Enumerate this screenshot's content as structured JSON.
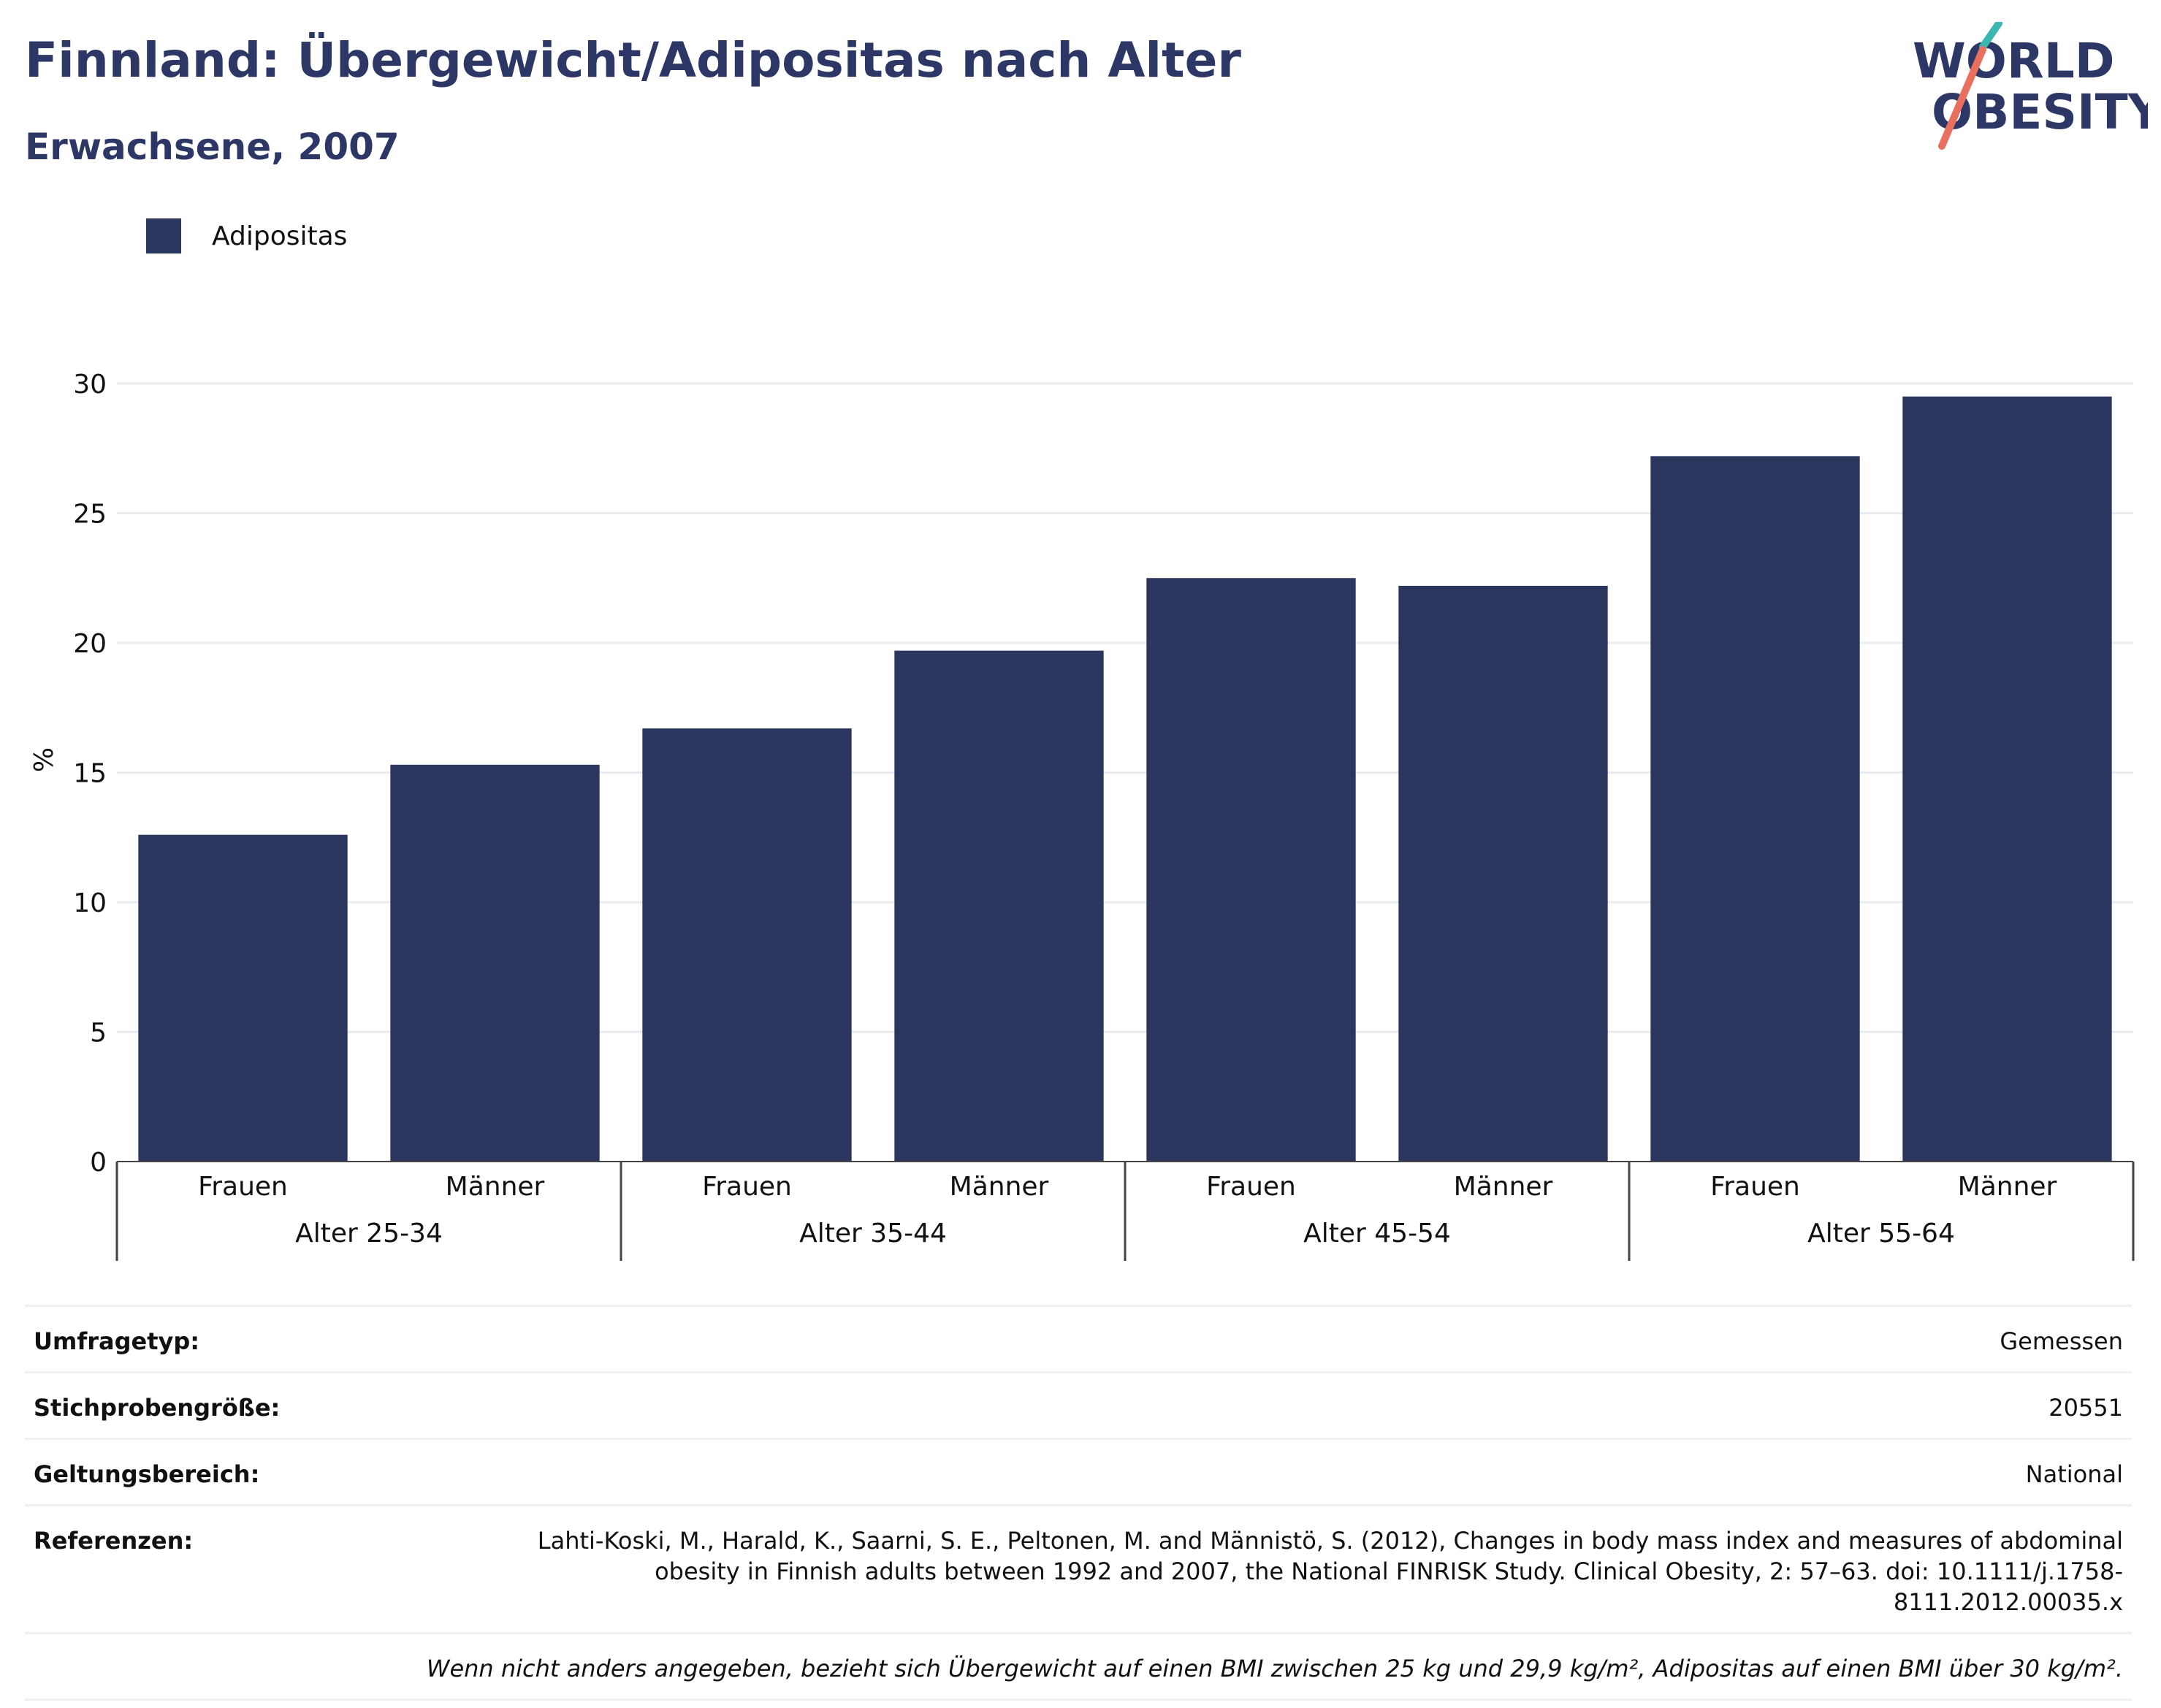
{
  "header": {
    "title": "Finnland: Übergewicht/Adipositas nach Alter",
    "subtitle": "Erwachsene, 2007"
  },
  "logo": {
    "line1": "WORLD",
    "line2": "OBESITY"
  },
  "legend": {
    "items": [
      {
        "label": "Adipositas",
        "color": "#2b365f"
      }
    ]
  },
  "chart_data": {
    "type": "bar",
    "ylabel": "%",
    "ylim": [
      0,
      30
    ],
    "yticks": [
      0,
      5,
      10,
      15,
      20,
      25,
      30
    ],
    "grid": true,
    "groups": [
      "Alter 25-34",
      "Alter 35-44",
      "Alter 45-54",
      "Alter 55-64"
    ],
    "subcategories": [
      "Frauen",
      "Männer"
    ],
    "series": [
      {
        "name": "Adipositas",
        "color": "#2b365f",
        "values": [
          12.6,
          15.3,
          16.7,
          19.7,
          22.5,
          22.2,
          27.2,
          29.5
        ]
      }
    ]
  },
  "info": {
    "rows": [
      {
        "key": "Umfragetyp:",
        "value": "Gemessen"
      },
      {
        "key": "Stichprobengröße:",
        "value": "20551"
      },
      {
        "key": "Geltungsbereich:",
        "value": "National"
      },
      {
        "key": "Referenzen:",
        "value": "Lahti-Koski, M., Harald, K., Saarni, S. E., Peltonen, M. and Männistö, S. (2012), Changes in body mass index and measures of abdominal obesity in Finnish adults between 1992 and 2007, the National FINRISK Study. Clinical Obesity, 2: 57–63. doi: 10.1111/j.1758-8111.2012.00035.x"
      }
    ],
    "note": "Wenn nicht anders angegeben, bezieht sich Übergewicht auf einen BMI zwischen 25 kg und 29,9 kg/m², Adipositas auf einen BMI über 30 kg/m²."
  }
}
